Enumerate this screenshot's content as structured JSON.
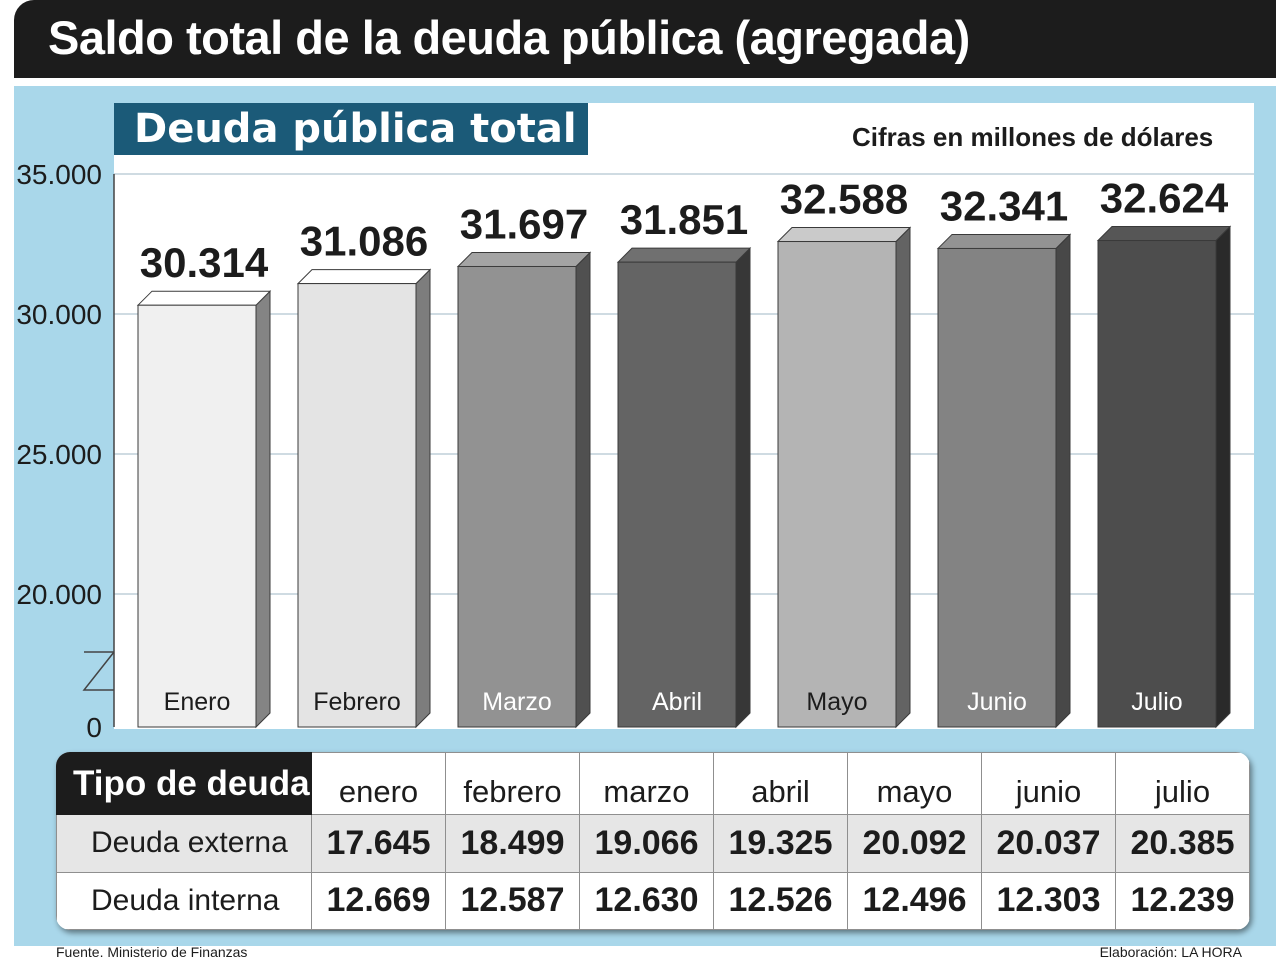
{
  "header": {
    "title": "Saldo total de la deuda pública (agregada)"
  },
  "subtitle": "Deuda pública total",
  "units_note": "Cifras en millones de dólares",
  "chart_data": {
    "type": "bar",
    "title": "Deuda pública total",
    "categories": [
      "Enero",
      "Febrero",
      "Marzo",
      "Abril",
      "Mayo",
      "Junio",
      "Julio"
    ],
    "values": [
      30314,
      31086,
      31697,
      31851,
      32588,
      32341,
      32624
    ],
    "value_labels": [
      "30.314",
      "31.086",
      "31.697",
      "31.851",
      "32.588",
      "32.341",
      "32.624"
    ],
    "y_ticks": [
      "0",
      "20.000",
      "25.000",
      "30.000",
      "35.000"
    ],
    "ylim": [
      0,
      35000
    ],
    "axis_break": true,
    "grid": true,
    "colors": [
      "#f0f0f0",
      "#e4e4e4",
      "#929292",
      "#646464",
      "#b4b4b4",
      "#838383",
      "#4d4d4d"
    ]
  },
  "table": {
    "header_label": "Tipo de deuda",
    "months": [
      "enero",
      "febrero",
      "marzo",
      "abril",
      "mayo",
      "junio",
      "julio"
    ],
    "rows": [
      {
        "label": "Deuda externa",
        "values": [
          "17.645",
          "18.499",
          "19.066",
          "19.325",
          "20.092",
          "20.037",
          "20.385"
        ]
      },
      {
        "label": "Deuda interna",
        "values": [
          "12.669",
          "12.587",
          "12.630",
          "12.526",
          "12.496",
          "12.303",
          "12.239"
        ]
      }
    ]
  },
  "footer": {
    "source": "Fuente. Ministerio de Finanzas",
    "credit": "Elaboración: LA HORA"
  }
}
